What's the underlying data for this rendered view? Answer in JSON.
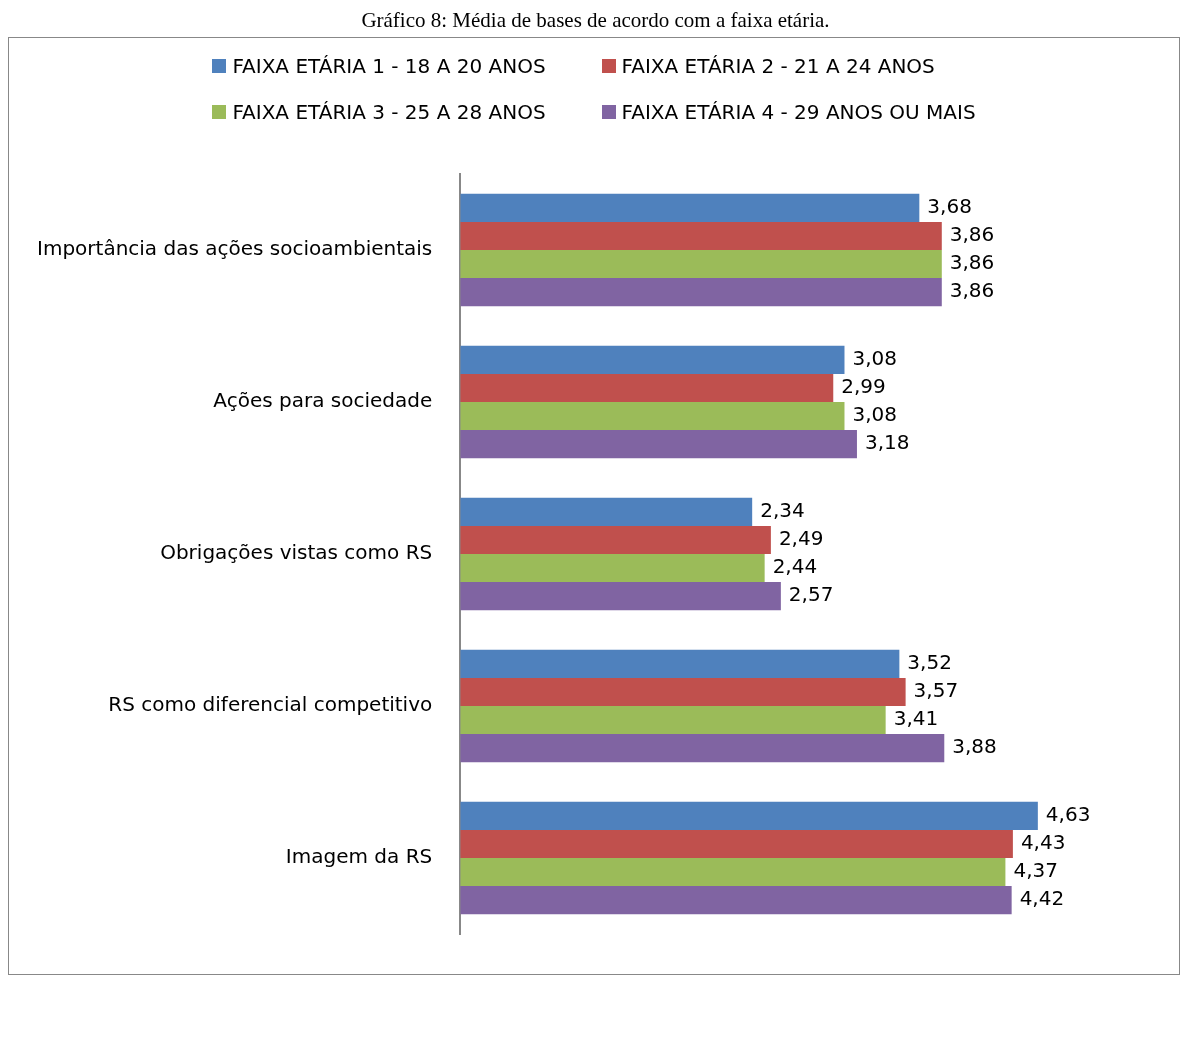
{
  "chart_data": {
    "type": "bar",
    "orientation": "horizontal",
    "title": "Gráfico 8: Média de bases de acordo com a faixa etária.",
    "categories": [
      "Importância das ações socioambientais",
      "Ações para sociedade",
      "Obrigações vistas como RS",
      "RS como diferencial competitivo",
      "Imagem da RS"
    ],
    "series": [
      {
        "name": "FAIXA ETÁRIA 1 - 18 A 20 ANOS",
        "color": "#4f81bd",
        "values": [
          3.68,
          3.08,
          2.34,
          3.52,
          4.63
        ],
        "value_labels": [
          "3,68",
          "3,08",
          "2,34",
          "3,52",
          "4,63"
        ]
      },
      {
        "name": "FAIXA ETÁRIA 2 - 21 A 24 ANOS",
        "color": "#c0504d",
        "values": [
          3.86,
          2.99,
          2.49,
          3.57,
          4.43
        ],
        "value_labels": [
          "3,86",
          "2,99",
          "2,49",
          "3,57",
          "4,43"
        ]
      },
      {
        "name": "FAIXA ETÁRIA 3 - 25 A 28 ANOS",
        "color": "#9bbb59",
        "values": [
          3.86,
          3.08,
          2.44,
          3.41,
          4.37
        ],
        "value_labels": [
          "3,86",
          "3,08",
          "2,44",
          "3,41",
          "4,37"
        ]
      },
      {
        "name": "FAIXA ETÁRIA 4 - 29 ANOS OU MAIS",
        "color": "#8064a2",
        "values": [
          3.86,
          3.18,
          2.57,
          3.88,
          4.42
        ],
        "value_labels": [
          "3,86",
          "3,18",
          "2,57",
          "3,88",
          "4,42"
        ]
      }
    ],
    "legend": "top",
    "grid": false,
    "tick_labels": "y"
  }
}
